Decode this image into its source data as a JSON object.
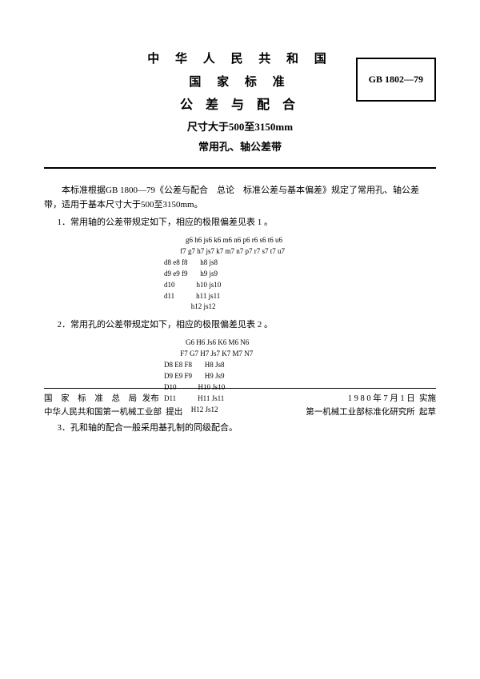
{
  "header": {
    "line1": "中 华 人 民 共 和 国",
    "line2": "国 家 标 准",
    "line3": "公 差 与 配 合",
    "line4": "尺寸大于500至3150mm",
    "line5": "常用孔、轴公差带",
    "code": "GB 1802—79"
  },
  "body": {
    "intro": "本标准根据GB 1800—79《公差与配合　总论　标准公差与基本偏差》规定了常用孔、轴公差带，适用于基本尺寸大于500至3150mm。",
    "sec1": "1．常用轴的公差带规定如下，相应的极限偏差见表 1 。",
    "grid1": "            g6 h6 js6 k6 m6 n6 p6 r6 s6 t6 u6\n         f7 g7 h7 js7 k7 m7 n7 p7 r7 s7 t7 u7\nd8 e8 f8       h8 js8\nd9 e9 f9       h9 js9\nd10            h10 js10\nd11            h11 js11\n               h12 js12",
    "sec2": "2．常用孔的公差带规定如下，相应的极限偏差见表 2 。",
    "grid2": "            G6 H6 Js6 K6 M6 N6\n         F7 G7 H7 Js7 K7 M7 N7\nD8 E8 F8       H8 Js8\nD9 E9 F9       H9 Js9\nD10            H10 Js10\nD11            H11 Js11\n               H12 Js12",
    "sec3": "3．孔和轴的配合一般采用基孔制的同级配合。"
  },
  "footer": {
    "left1a": "国 家 标 准 总 局",
    "left1b": "发布",
    "left2a": "中华人民共和国第一机械工业部",
    "left2b": "提出",
    "right1a": "1 9 8 0 年 7 月 1 日",
    "right1b": "实施",
    "right2a": "第一机械工业部标准化研究所",
    "right2b": "起草"
  }
}
